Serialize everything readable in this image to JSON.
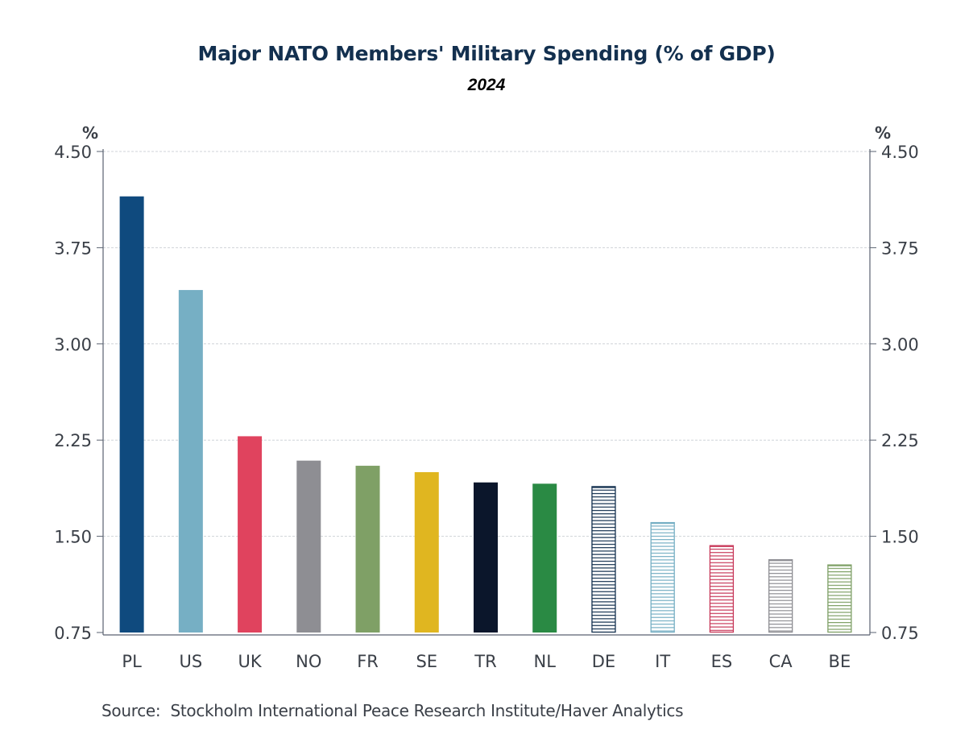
{
  "chart_data": {
    "type": "bar",
    "title": "Major NATO Members' Military Spending (% of GDP)",
    "subtitle": "2024",
    "xlabel": "",
    "ylabel": "%",
    "ylabel_right": "%",
    "ylim": [
      0.75,
      4.5
    ],
    "yticks": [
      0.75,
      1.5,
      2.25,
      3.0,
      3.75,
      4.5
    ],
    "ytick_labels": [
      "0.75",
      "1.50",
      "2.25",
      "3.00",
      "3.75",
      "4.50"
    ],
    "grid": true,
    "categories": [
      "PL",
      "US",
      "UK",
      "NO",
      "FR",
      "SE",
      "TR",
      "NL",
      "DE",
      "IT",
      "ES",
      "CA",
      "BE"
    ],
    "values": [
      4.15,
      3.42,
      2.28,
      2.09,
      2.05,
      2.0,
      1.92,
      1.91,
      1.89,
      1.61,
      1.43,
      1.32,
      1.28
    ],
    "bar_styles": [
      {
        "color": "#0f4a7e",
        "fill": "solid"
      },
      {
        "color": "#76afc4",
        "fill": "solid"
      },
      {
        "color": "#e0435e",
        "fill": "solid"
      },
      {
        "color": "#8e8e93",
        "fill": "solid"
      },
      {
        "color": "#7fa066",
        "fill": "solid"
      },
      {
        "color": "#e0b620",
        "fill": "solid"
      },
      {
        "color": "#0b162b",
        "fill": "solid"
      },
      {
        "color": "#2a8a44",
        "fill": "solid"
      },
      {
        "color": "#13304f",
        "fill": "hatch"
      },
      {
        "color": "#76afc4",
        "fill": "hatch"
      },
      {
        "color": "#c8395a",
        "fill": "hatch"
      },
      {
        "color": "#8e8e93",
        "fill": "hatch"
      },
      {
        "color": "#7fa066",
        "fill": "hatch"
      }
    ],
    "source": "Source:  Stockholm International Peace Research Institute/Haver Analytics"
  }
}
